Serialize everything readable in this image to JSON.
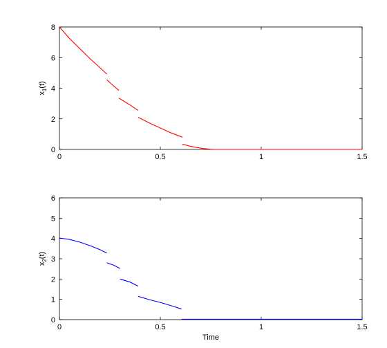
{
  "chart_data": [
    {
      "type": "line",
      "xlabel": "",
      "ylabel": {
        "base": "x",
        "sub": "1",
        "tail": "(t)"
      },
      "xlim": [
        0,
        1.5
      ],
      "ylim": [
        0,
        8
      ],
      "xticks": [
        0,
        0.5,
        1,
        1.5
      ],
      "xtick_labels": [
        "0",
        "0.5",
        "1",
        "1.5"
      ],
      "yticks": [
        0,
        2,
        4,
        6,
        8
      ],
      "ytick_labels": [
        "0",
        "2",
        "4",
        "6",
        "8"
      ],
      "grid": false,
      "series": [
        {
          "color": "#ff0000",
          "segments": [
            [
              [
                0,
                8.0
              ],
              [
                0.05,
                7.25
              ],
              [
                0.1,
                6.6
              ],
              [
                0.15,
                5.95
              ],
              [
                0.2,
                5.35
              ],
              [
                0.235,
                4.92
              ]
            ],
            [
              [
                0.235,
                4.55
              ],
              [
                0.26,
                4.25
              ],
              [
                0.295,
                3.85
              ]
            ],
            [
              [
                0.295,
                3.35
              ],
              [
                0.35,
                2.9
              ],
              [
                0.39,
                2.55
              ]
            ],
            [
              [
                0.39,
                2.1
              ],
              [
                0.45,
                1.7
              ],
              [
                0.5,
                1.4
              ],
              [
                0.55,
                1.1
              ],
              [
                0.61,
                0.8
              ]
            ],
            [
              [
                0.61,
                0.35
              ],
              [
                0.65,
                0.2
              ],
              [
                0.7,
                0.08
              ],
              [
                0.75,
                0.01
              ],
              [
                0.77,
                0
              ],
              [
                1.5,
                0
              ]
            ]
          ]
        }
      ]
    },
    {
      "type": "line",
      "xlabel": "Time",
      "ylabel": {
        "base": "x",
        "sub": "2",
        "tail": "(t)"
      },
      "xlim": [
        0,
        1.5
      ],
      "ylim": [
        0,
        6
      ],
      "xticks": [
        0,
        0.5,
        1,
        1.5
      ],
      "xtick_labels": [
        "0",
        "0.5",
        "1",
        "1.5"
      ],
      "yticks": [
        0,
        1,
        2,
        3,
        4,
        5,
        6
      ],
      "ytick_labels": [
        "0",
        "1",
        "2",
        "3",
        "4",
        "5",
        "6"
      ],
      "grid": false,
      "series": [
        {
          "color": "#0000ff",
          "segments": [
            [
              [
                0,
                4.02
              ],
              [
                0.05,
                3.95
              ],
              [
                0.1,
                3.82
              ],
              [
                0.15,
                3.65
              ],
              [
                0.2,
                3.45
              ],
              [
                0.235,
                3.28
              ]
            ],
            [
              [
                0.235,
                2.8
              ],
              [
                0.27,
                2.68
              ],
              [
                0.3,
                2.52
              ]
            ],
            [
              [
                0.3,
                2.0
              ],
              [
                0.35,
                1.85
              ],
              [
                0.39,
                1.65
              ]
            ],
            [
              [
                0.39,
                1.15
              ],
              [
                0.45,
                0.97
              ],
              [
                0.5,
                0.85
              ],
              [
                0.55,
                0.7
              ],
              [
                0.605,
                0.52
              ]
            ],
            [
              [
                0.605,
                0.02
              ],
              [
                1.5,
                0.02
              ]
            ]
          ]
        }
      ]
    }
  ]
}
